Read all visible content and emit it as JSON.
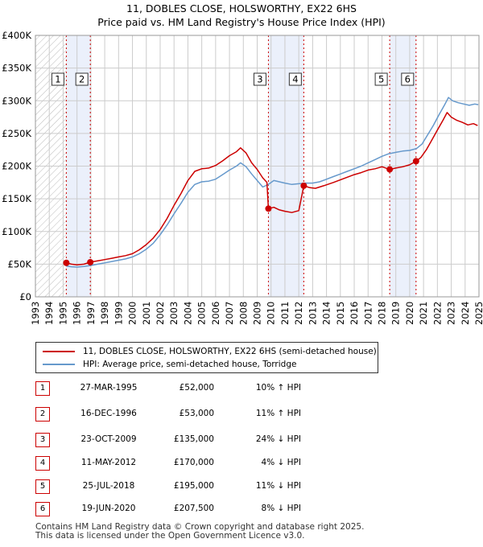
{
  "header": {
    "title": "11, DOBLES CLOSE, HOLSWORTHY, EX22 6HS",
    "subtitle": "Price paid vs. HM Land Registry's House Price Index (HPI)"
  },
  "colors": {
    "property": "#cc0000",
    "hpi": "#6699cc",
    "band": "#ebf0fb",
    "grid": "#cccccc"
  },
  "chart_data": {
    "type": "line",
    "xlim": [
      1993,
      2025
    ],
    "ylim": [
      0,
      400000
    ],
    "x_ticks": [
      "1993",
      "1994",
      "1995",
      "1996",
      "1997",
      "1998",
      "1999",
      "2000",
      "2001",
      "2002",
      "2003",
      "2004",
      "2005",
      "2006",
      "2007",
      "2008",
      "2009",
      "2010",
      "2011",
      "2012",
      "2013",
      "2014",
      "2015",
      "2016",
      "2017",
      "2018",
      "2019",
      "2020",
      "2021",
      "2022",
      "2023",
      "2024",
      "2025"
    ],
    "y_ticks": [
      {
        "value": 0,
        "label": "£0"
      },
      {
        "value": 50000,
        "label": "£50K"
      },
      {
        "value": 100000,
        "label": "£100K"
      },
      {
        "value": 150000,
        "label": "£150K"
      },
      {
        "value": 200000,
        "label": "£200K"
      },
      {
        "value": 250000,
        "label": "£250K"
      },
      {
        "value": 300000,
        "label": "£300K"
      },
      {
        "value": 350000,
        "label": "£350K"
      },
      {
        "value": 400000,
        "label": "£400K"
      }
    ],
    "grid": true,
    "hatch_before": 1995.23,
    "bands": [
      [
        1995.23,
        1996.96
      ],
      [
        2009.81,
        2012.36
      ],
      [
        2018.56,
        2020.46
      ]
    ],
    "markers": [
      {
        "label": "1",
        "x": 1995.23,
        "y": 52000
      },
      {
        "label": "2",
        "x": 1996.96,
        "y": 53000
      },
      {
        "label": "3",
        "x": 2009.81,
        "y": 135000
      },
      {
        "label": "4",
        "x": 2012.36,
        "y": 170000
      },
      {
        "label": "5",
        "x": 2018.56,
        "y": 195000
      },
      {
        "label": "6",
        "x": 2020.46,
        "y": 207500
      }
    ],
    "series": [
      {
        "name": "11, DOBLES CLOSE, HOLSWORTHY, EX22 6HS (semi-detached house)",
        "points": [
          [
            1995.23,
            52000
          ],
          [
            1995.6,
            50000
          ],
          [
            1996.0,
            49000
          ],
          [
            1996.5,
            50000
          ],
          [
            1996.96,
            53000
          ],
          [
            1997.5,
            55000
          ],
          [
            1998.0,
            57000
          ],
          [
            1998.5,
            59000
          ],
          [
            1999.0,
            61000
          ],
          [
            1999.5,
            63000
          ],
          [
            2000.0,
            66000
          ],
          [
            2000.5,
            72000
          ],
          [
            2001.0,
            80000
          ],
          [
            2001.5,
            90000
          ],
          [
            2002.0,
            103000
          ],
          [
            2002.5,
            120000
          ],
          [
            2003.0,
            140000
          ],
          [
            2003.5,
            158000
          ],
          [
            2004.0,
            178000
          ],
          [
            2004.5,
            192000
          ],
          [
            2005.0,
            196000
          ],
          [
            2005.5,
            197000
          ],
          [
            2006.0,
            201000
          ],
          [
            2006.5,
            208000
          ],
          [
            2007.0,
            216000
          ],
          [
            2007.5,
            222000
          ],
          [
            2007.8,
            228000
          ],
          [
            2008.2,
            220000
          ],
          [
            2008.6,
            205000
          ],
          [
            2009.0,
            195000
          ],
          [
            2009.4,
            182000
          ],
          [
            2009.7,
            175000
          ],
          [
            2009.81,
            135000
          ],
          [
            2010.2,
            137000
          ],
          [
            2010.6,
            133000
          ],
          [
            2011.0,
            131000
          ],
          [
            2011.5,
            129000
          ],
          [
            2012.0,
            132000
          ],
          [
            2012.36,
            170000
          ],
          [
            2012.8,
            167000
          ],
          [
            2013.2,
            166000
          ],
          [
            2013.8,
            170000
          ],
          [
            2014.5,
            175000
          ],
          [
            2015.0,
            179000
          ],
          [
            2015.5,
            183000
          ],
          [
            2016.0,
            187000
          ],
          [
            2016.5,
            190000
          ],
          [
            2017.0,
            194000
          ],
          [
            2017.5,
            196000
          ],
          [
            2018.0,
            199000
          ],
          [
            2018.56,
            195000
          ],
          [
            2019.0,
            197000
          ],
          [
            2019.5,
            199000
          ],
          [
            2020.0,
            202000
          ],
          [
            2020.46,
            207500
          ],
          [
            2020.8,
            213000
          ],
          [
            2021.2,
            225000
          ],
          [
            2021.6,
            240000
          ],
          [
            2022.0,
            255000
          ],
          [
            2022.4,
            270000
          ],
          [
            2022.7,
            282000
          ],
          [
            2023.0,
            275000
          ],
          [
            2023.4,
            270000
          ],
          [
            2023.8,
            267000
          ],
          [
            2024.2,
            263000
          ],
          [
            2024.6,
            265000
          ],
          [
            2024.9,
            262000
          ]
        ]
      },
      {
        "name": "HPI: Average price, semi-detached house, Torridge",
        "points": [
          [
            1995.23,
            47000
          ],
          [
            1995.6,
            46000
          ],
          [
            1996.0,
            45500
          ],
          [
            1996.5,
            46500
          ],
          [
            1997.0,
            48000
          ],
          [
            1997.5,
            50000
          ],
          [
            1998.0,
            52000
          ],
          [
            1998.5,
            54000
          ],
          [
            1999.0,
            56000
          ],
          [
            1999.5,
            58000
          ],
          [
            2000.0,
            61000
          ],
          [
            2000.5,
            66000
          ],
          [
            2001.0,
            73000
          ],
          [
            2001.5,
            82000
          ],
          [
            2002.0,
            95000
          ],
          [
            2002.5,
            110000
          ],
          [
            2003.0,
            127000
          ],
          [
            2003.5,
            143000
          ],
          [
            2004.0,
            160000
          ],
          [
            2004.5,
            172000
          ],
          [
            2005.0,
            176000
          ],
          [
            2005.5,
            177000
          ],
          [
            2006.0,
            180000
          ],
          [
            2006.5,
            187000
          ],
          [
            2007.0,
            194000
          ],
          [
            2007.5,
            200000
          ],
          [
            2007.8,
            205000
          ],
          [
            2008.2,
            199000
          ],
          [
            2008.6,
            188000
          ],
          [
            2009.0,
            178000
          ],
          [
            2009.4,
            168000
          ],
          [
            2009.8,
            172000
          ],
          [
            2010.2,
            178000
          ],
          [
            2010.6,
            176000
          ],
          [
            2011.0,
            174000
          ],
          [
            2011.5,
            172000
          ],
          [
            2012.0,
            173000
          ],
          [
            2012.5,
            174000
          ],
          [
            2013.0,
            174000
          ],
          [
            2013.5,
            176000
          ],
          [
            2014.0,
            180000
          ],
          [
            2014.5,
            184000
          ],
          [
            2015.0,
            188000
          ],
          [
            2015.5,
            192000
          ],
          [
            2016.0,
            196000
          ],
          [
            2016.5,
            200000
          ],
          [
            2017.0,
            205000
          ],
          [
            2017.5,
            210000
          ],
          [
            2018.0,
            215000
          ],
          [
            2018.5,
            219000
          ],
          [
            2019.0,
            221000
          ],
          [
            2019.5,
            223000
          ],
          [
            2020.0,
            224000
          ],
          [
            2020.5,
            227000
          ],
          [
            2020.9,
            234000
          ],
          [
            2021.3,
            248000
          ],
          [
            2021.7,
            262000
          ],
          [
            2022.1,
            278000
          ],
          [
            2022.5,
            293000
          ],
          [
            2022.8,
            305000
          ],
          [
            2023.1,
            300000
          ],
          [
            2023.5,
            297000
          ],
          [
            2023.9,
            295000
          ],
          [
            2024.3,
            293000
          ],
          [
            2024.7,
            295000
          ],
          [
            2024.95,
            294000
          ]
        ]
      }
    ]
  },
  "legend": {
    "property_label": "11, DOBLES CLOSE, HOLSWORTHY, EX22 6HS (semi-detached house)",
    "hpi_label": "HPI: Average price, semi-detached house, Torridge"
  },
  "sales": [
    {
      "num": "1",
      "date": "27-MAR-1995",
      "price": "£52,000",
      "hpi": "10% ↑ HPI"
    },
    {
      "num": "2",
      "date": "16-DEC-1996",
      "price": "£53,000",
      "hpi": "11% ↑ HPI"
    },
    {
      "num": "3",
      "date": "23-OCT-2009",
      "price": "£135,000",
      "hpi": "24% ↓ HPI"
    },
    {
      "num": "4",
      "date": "11-MAY-2012",
      "price": "£170,000",
      "hpi": "4% ↓ HPI"
    },
    {
      "num": "5",
      "date": "25-JUL-2018",
      "price": "£195,000",
      "hpi": "11% ↓ HPI"
    },
    {
      "num": "6",
      "date": "19-JUN-2020",
      "price": "£207,500",
      "hpi": "8% ↓ HPI"
    }
  ],
  "footer": {
    "line1": "Contains HM Land Registry data © Crown copyright and database right 2025.",
    "line2": "This data is licensed under the Open Government Licence v3.0."
  }
}
